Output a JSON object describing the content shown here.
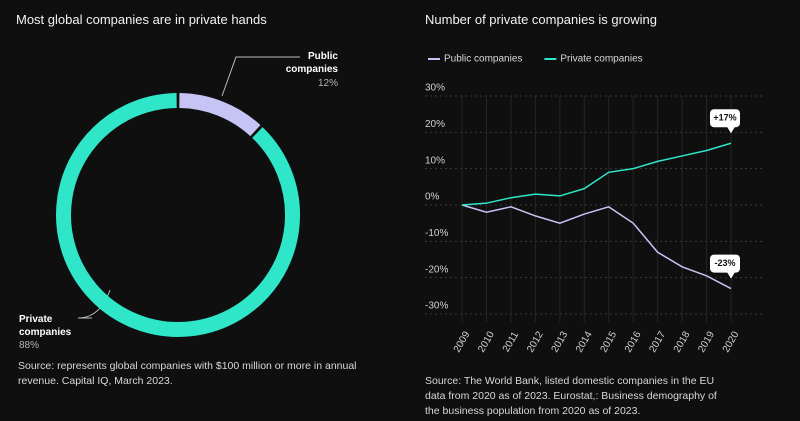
{
  "chart_data": [
    {
      "type": "pie",
      "title": "Most global companies are in private hands",
      "categories": [
        "Public companies",
        "Private companies"
      ],
      "values": [
        12,
        88
      ],
      "value_labels": [
        "12%",
        "88%"
      ],
      "colors": [
        "#c6c4f4",
        "#2fe6c8"
      ],
      "source": "Source: represents global companies with $100 million or more in annual revenue. Capital IQ, March 2023."
    },
    {
      "type": "line",
      "title": "Number of private companies is growing",
      "x": [
        2009,
        2010,
        2011,
        2012,
        2013,
        2014,
        2015,
        2016,
        2017,
        2018,
        2019,
        2020
      ],
      "series": [
        {
          "name": "Public companies",
          "color": "#c6c4f4",
          "values": [
            0,
            -2,
            -0.5,
            -3,
            -5,
            -2.5,
            -0.5,
            -5,
            -13,
            -17,
            -19.5,
            -23
          ],
          "value_labels": [
            null,
            null,
            null,
            null,
            null,
            null,
            null,
            null,
            null,
            null,
            null,
            "-23%"
          ]
        },
        {
          "name": "Private companies",
          "color": "#2fe6c8",
          "values": [
            0,
            0.5,
            2,
            3,
            2.5,
            4.5,
            9,
            10,
            12,
            13.5,
            15,
            17
          ],
          "value_labels": [
            null,
            null,
            null,
            null,
            null,
            null,
            null,
            null,
            null,
            null,
            null,
            "+17%"
          ]
        }
      ],
      "ylim": [
        -30,
        30
      ],
      "yticks": [
        {
          "value": 30,
          "label": "30%"
        },
        {
          "value": 20,
          "label": "20%"
        },
        {
          "value": 10,
          "label": "10%"
        },
        {
          "value": 0,
          "label": "0%"
        },
        {
          "value": -10,
          "label": "-10%"
        },
        {
          "value": -20,
          "label": "-20%"
        },
        {
          "value": -30,
          "label": "-30%"
        }
      ],
      "grid": true,
      "source": "Source: The World Bank, listed domestic companies in the EU data from 2020 as of 2023. Eurostat,: Business demography of the business population from 2020 as of 2023."
    }
  ]
}
